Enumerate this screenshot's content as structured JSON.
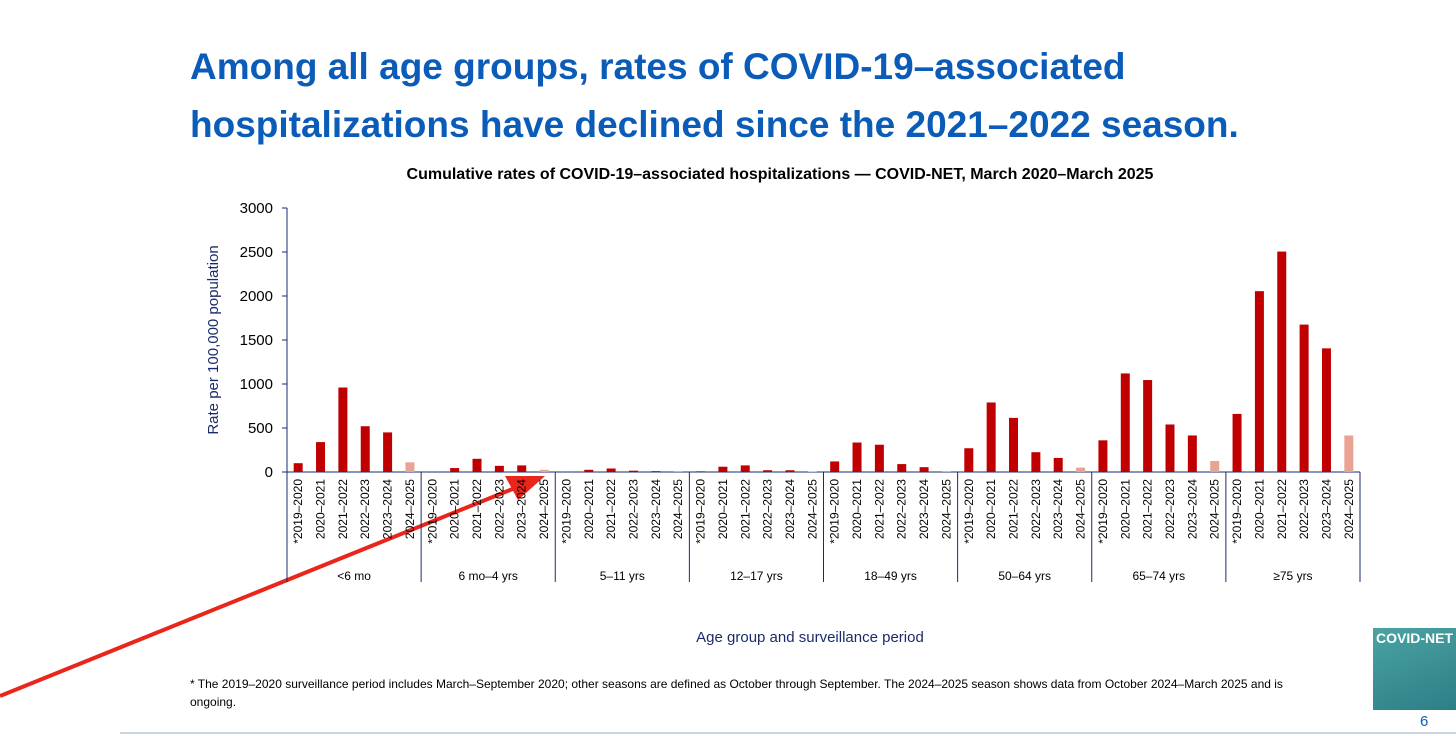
{
  "slide": {
    "title_lines": [
      "Among all age groups, rates of COVID-19–associated",
      "hospitalizations have declined since the 2021–2022 season."
    ],
    "footnote": "* The 2019–2020 surveillance period includes March–September 2020; other seasons are defined as October through September. The 2024–2025 season shows data from October 2024–March 2025 and is ongoing.",
    "logo": "COVID-NET",
    "page_number": "6"
  },
  "chart_data": {
    "type": "bar",
    "title": "Cumulative rates of COVID-19–associated hospitalizations — COVID-NET, March 2020–March 2025",
    "x_label": "Age group and surveillance period",
    "y_label": "Rate per 100,000 population",
    "categories": [
      "*2019–2020",
      "2020–2021",
      "2021–2022",
      "2022–2023",
      "2023–2024",
      "2024–2025"
    ],
    "colors": [
      "#c00000",
      "#c00000",
      "#c00000",
      "#c00000",
      "#c00000",
      "#e8a394"
    ],
    "groups": [
      {
        "name": "<6 mo",
        "values": [
          100,
          340,
          960,
          520,
          450,
          110
        ]
      },
      {
        "name": "6 mo–4 yrs",
        "values": [
          5,
          45,
          150,
          70,
          75,
          25
        ]
      },
      {
        "name": "5–11 yrs",
        "values": [
          3,
          25,
          40,
          15,
          10,
          3
        ]
      },
      {
        "name": "12–17 yrs",
        "values": [
          8,
          60,
          75,
          20,
          20,
          5
        ]
      },
      {
        "name": "18–49 yrs",
        "values": [
          120,
          335,
          310,
          90,
          55,
          10
        ]
      },
      {
        "name": "50–64 yrs",
        "values": [
          270,
          790,
          615,
          225,
          160,
          50
        ]
      },
      {
        "name": "65–74 yrs",
        "values": [
          360,
          1120,
          1045,
          540,
          415,
          125
        ]
      },
      {
        "name": "≥75 yrs",
        "values": [
          660,
          2055,
          2505,
          1675,
          1405,
          415
        ]
      }
    ],
    "ylim": [
      0,
      3000
    ],
    "yticks": [
      0,
      500,
      1000,
      1500,
      2000,
      2500,
      3000
    ],
    "grid": false
  }
}
